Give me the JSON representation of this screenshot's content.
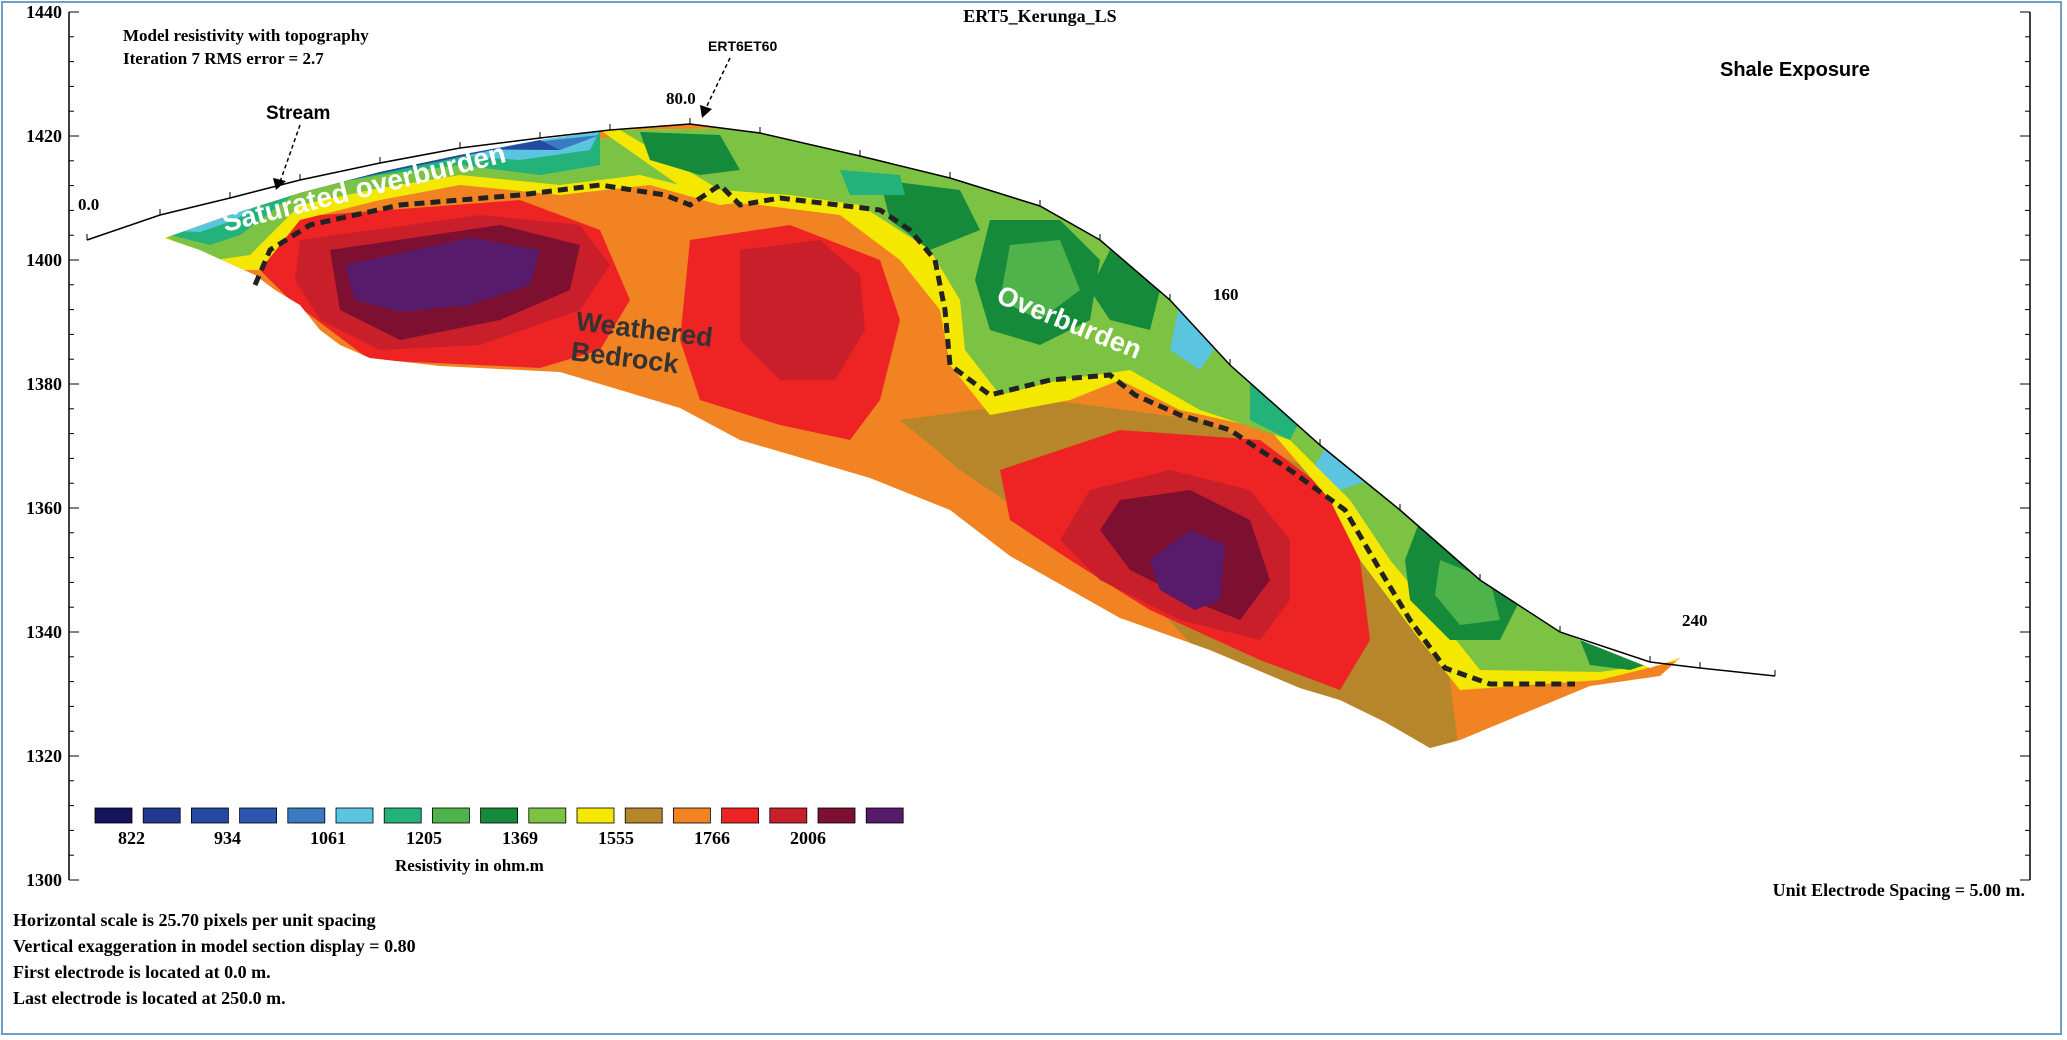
{
  "chart_data": {
    "type": "heatmap",
    "title": "ERT5_Kerunga_LS",
    "subtitle_line1": "Model resistivity with topography",
    "subtitle_line2": "Iteration 7 RMS error = 2.7",
    "y_ticks": [
      "1440",
      "1420",
      "1400",
      "1380",
      "1360",
      "1340",
      "1320",
      "1300"
    ],
    "ylim": [
      1300,
      1440
    ],
    "distance_labels": [
      "0.0",
      "80.0",
      "160",
      "240"
    ],
    "legend_values": [
      "822",
      "934",
      "1061",
      "1205",
      "1369",
      "1555",
      "1766",
      "2006"
    ],
    "legend_colors": [
      "#14145a",
      "#1f3a8f",
      "#2549a0",
      "#2e55b0",
      "#3a7ac0",
      "#5bc5e0",
      "#22b27a",
      "#4db34a",
      "#158a3a",
      "#7cc243",
      "#f5e800",
      "#b8862a",
      "#f28322",
      "#ee2424",
      "#c91f2a",
      "#7d1030",
      "#581a6a"
    ],
    "legend_label": "Resistivity in ohm.m",
    "annotations": {
      "top_right": "Shale Exposure",
      "stream": "Stream",
      "marker": "ERT6ET60",
      "saturated": "Saturated overburden",
      "weathered_1": "Weathered",
      "weathered_2": "Bedrock",
      "overburden": "Overburden",
      "unit_spacing": "Unit Electrode Spacing = 5.00 m."
    },
    "footer": [
      "Horizontal scale is 25.70 pixels per unit spacing",
      "Vertical exaggeration in model section display = 0.80",
      "First electrode is located at 0.0  m.",
      "Last electrode is located at 250.0 m."
    ]
  }
}
